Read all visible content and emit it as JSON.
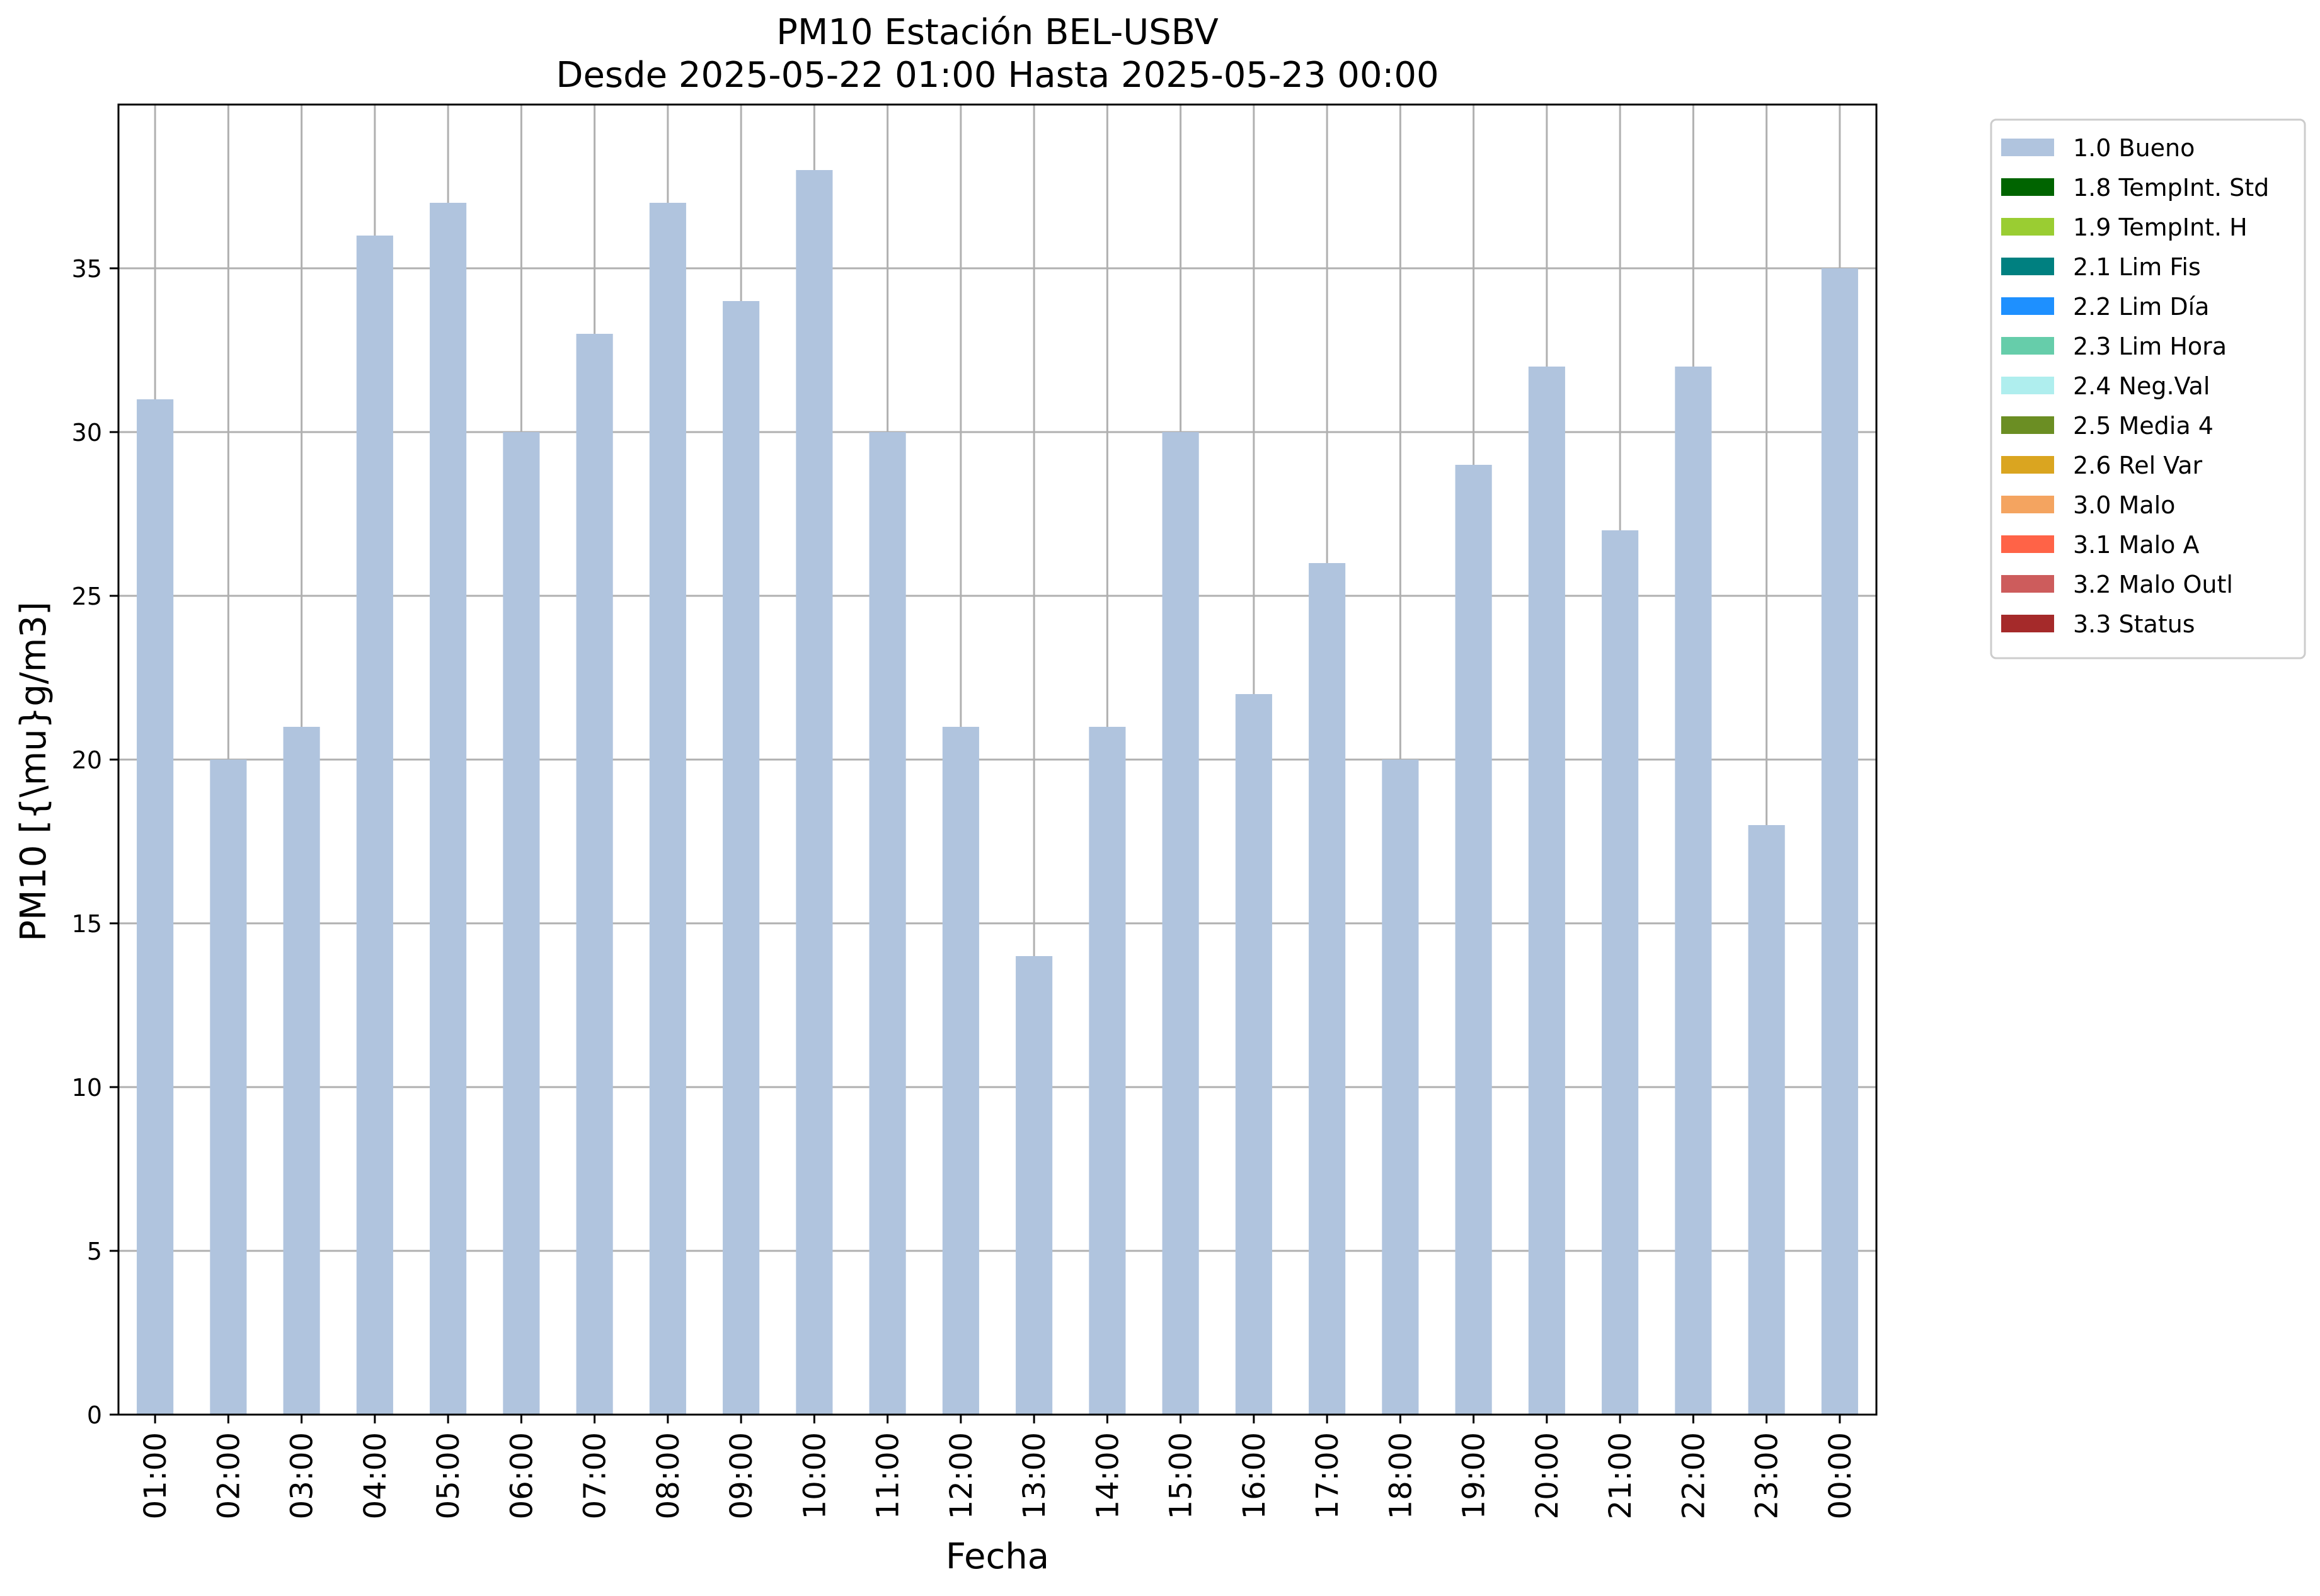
{
  "chart_data": {
    "type": "bar",
    "title": "PM10 Estación BEL-USBV",
    "subtitle": "Desde 2025-05-22 01:00 Hasta 2025-05-23 00:00",
    "xlabel": "Fecha",
    "ylabel": "PM10 [{\\mu}g/m3]",
    "ylim": [
      0,
      40
    ],
    "yticks": [
      0,
      5,
      10,
      15,
      20,
      25,
      30,
      35
    ],
    "grid": true,
    "legend_position": "outside-top-right",
    "categories": [
      "01:00",
      "02:00",
      "03:00",
      "04:00",
      "05:00",
      "06:00",
      "07:00",
      "08:00",
      "09:00",
      "10:00",
      "11:00",
      "12:00",
      "13:00",
      "14:00",
      "15:00",
      "16:00",
      "17:00",
      "18:00",
      "19:00",
      "20:00",
      "21:00",
      "22:00",
      "23:00",
      "00:00"
    ],
    "series": [
      {
        "name": "1.0 Bueno",
        "color": "#b0c4de",
        "values": [
          31,
          20,
          21,
          36,
          37,
          30,
          33,
          37,
          34,
          38,
          30,
          21,
          14,
          21,
          30,
          22,
          26,
          20,
          29,
          32,
          27,
          32,
          18,
          35
        ]
      }
    ],
    "legend": [
      {
        "label": "1.0 Bueno",
        "color": "#b0c4de"
      },
      {
        "label": "1.8 TempInt. Std",
        "color": "#006400"
      },
      {
        "label": "1.9 TempInt. H",
        "color": "#9acd32"
      },
      {
        "label": "2.1 Lim Fis",
        "color": "#008080"
      },
      {
        "label": "2.2 Lim Día",
        "color": "#1e90ff"
      },
      {
        "label": "2.3 Lim Hora",
        "color": "#66cdaa"
      },
      {
        "label": "2.4 Neg.Val",
        "color": "#afeeee"
      },
      {
        "label": "2.5 Media 4",
        "color": "#6b8e23"
      },
      {
        "label": "2.6 Rel Var",
        "color": "#daa520"
      },
      {
        "label": "3.0 Malo",
        "color": "#f4a460"
      },
      {
        "label": "3.1 Malo A",
        "color": "#ff6347"
      },
      {
        "label": "3.2 Malo Outl",
        "color": "#cd5c5c"
      },
      {
        "label": "3.3 Status",
        "color": "#a52a2a"
      }
    ]
  }
}
